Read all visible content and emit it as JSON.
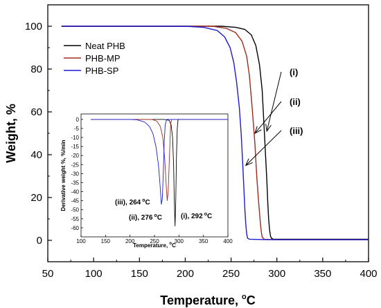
{
  "chart_data": [
    {
      "type": "line",
      "xlabel": "Temperature, ",
      "xlabel_unit": "C",
      "xlabel_sup": "o",
      "ylabel": "Weight, %",
      "xlim": [
        50,
        400
      ],
      "ylim": [
        -10,
        110
      ],
      "xticks": [
        50,
        100,
        150,
        200,
        250,
        300,
        350,
        400
      ],
      "yticks": [
        0,
        20,
        40,
        60,
        80,
        100
      ],
      "legend_position": "top-left",
      "series": [
        {
          "name": "Neat PHB",
          "color": "#000000",
          "points": [
            [
              65,
              100
            ],
            [
              200,
              100
            ],
            [
              240,
              100
            ],
            [
              255,
              99.5
            ],
            [
              265,
              98.5
            ],
            [
              272,
              96
            ],
            [
              277,
              91
            ],
            [
              281,
              82
            ],
            [
              284,
              70
            ],
            [
              287,
              45
            ],
            [
              289,
              28
            ],
            [
              290,
              18
            ],
            [
              291,
              10
            ],
            [
              292,
              5
            ],
            [
              293,
              2
            ],
            [
              294,
              1
            ],
            [
              296,
              0.5
            ],
            [
              320,
              0.5
            ],
            [
              400,
              0.5
            ]
          ]
        },
        {
          "name": "PHB-MP",
          "color": "#a0281e",
          "points": [
            [
              65,
              100
            ],
            [
              200,
              100
            ],
            [
              230,
              100
            ],
            [
              245,
              99
            ],
            [
              255,
              97
            ],
            [
              262,
              93
            ],
            [
              267,
              86
            ],
            [
              270,
              77
            ],
            [
              273,
              62
            ],
            [
              276,
              45
            ],
            [
              278,
              30
            ],
            [
              280,
              18
            ],
            [
              282,
              8
            ],
            [
              283,
              4
            ],
            [
              284,
              1.5
            ],
            [
              286,
              0.5
            ],
            [
              300,
              0.3
            ],
            [
              400,
              0.3
            ]
          ]
        },
        {
          "name": "PHB-SP",
          "color": "#1a1ad6",
          "points": [
            [
              65,
              100
            ],
            [
              200,
              100
            ],
            [
              220,
              99.5
            ],
            [
              235,
              98
            ],
            [
              243,
              95
            ],
            [
              249,
              90
            ],
            [
              253,
              83
            ],
            [
              256,
              74
            ],
            [
              259,
              62
            ],
            [
              261,
              50
            ],
            [
              262,
              42
            ],
            [
              263,
              33
            ],
            [
              264,
              24
            ],
            [
              265,
              15
            ],
            [
              266,
              8
            ],
            [
              267,
              3
            ],
            [
              268,
              1
            ],
            [
              270,
              0.5
            ],
            [
              290,
              0.3
            ],
            [
              400,
              0.3
            ]
          ]
        }
      ],
      "annotations": [
        {
          "label": "(i)",
          "series": "Neat PHB",
          "x": 286,
          "y": 50
        },
        {
          "label": "(ii)",
          "series": "PHB-MP",
          "x": 273,
          "y": 49
        },
        {
          "label": "(iii)",
          "series": "PHB-SP",
          "x": 263,
          "y": 34
        }
      ]
    },
    {
      "type": "line",
      "inset": true,
      "xlabel": "Temperature, ",
      "xlabel_unit": "C",
      "xlabel_sup": "o",
      "ylabel": "Derivative weight %, %/min",
      "xlim": [
        100,
        400
      ],
      "ylim": [
        -65,
        3
      ],
      "xticks": [
        100,
        150,
        200,
        250,
        300,
        350,
        400
      ],
      "yticks": [
        0,
        -5,
        -10,
        -15,
        -20,
        -25,
        -30,
        -35,
        -40,
        -45,
        -50,
        -55,
        -60
      ],
      "series": [
        {
          "name": "Neat PHB",
          "color": "#000000",
          "points": [
            [
              120,
              0
            ],
            [
              200,
              0
            ],
            [
              270,
              0
            ],
            [
              280,
              -0.5
            ],
            [
              284,
              -3
            ],
            [
              287,
              -10
            ],
            [
              289,
              -25
            ],
            [
              290.5,
              -45
            ],
            [
              292,
              -59
            ],
            [
              293.5,
              -45
            ],
            [
              295,
              -20
            ],
            [
              296.5,
              -5
            ],
            [
              298,
              -0.5
            ],
            [
              300,
              0
            ],
            [
              400,
              0
            ]
          ]
        },
        {
          "name": "PHB-MP",
          "color": "#a0281e",
          "points": [
            [
              120,
              0
            ],
            [
              200,
              0
            ],
            [
              245,
              0
            ],
            [
              255,
              -1
            ],
            [
              262,
              -4
            ],
            [
              267,
              -10
            ],
            [
              271,
              -22
            ],
            [
              274,
              -37
            ],
            [
              276,
              -45
            ],
            [
              278,
              -40
            ],
            [
              280,
              -25
            ],
            [
              282,
              -10
            ],
            [
              283,
              -3
            ],
            [
              285,
              0
            ],
            [
              400,
              0
            ]
          ]
        },
        {
          "name": "PHB-SP",
          "color": "#1a1ad6",
          "points": [
            [
              120,
              0
            ],
            [
              200,
              0
            ],
            [
              215,
              -0.3
            ],
            [
              230,
              -1.5
            ],
            [
              240,
              -4
            ],
            [
              247,
              -8
            ],
            [
              253,
              -15
            ],
            [
              258,
              -25
            ],
            [
              261,
              -35
            ],
            [
              264,
              -47
            ],
            [
              266,
              -44
            ],
            [
              268,
              -30
            ],
            [
              270,
              -12
            ],
            [
              272,
              -3
            ],
            [
              275,
              0
            ],
            [
              400,
              0
            ]
          ]
        }
      ],
      "peak_labels": [
        {
          "prefix": "(iii), ",
          "value": "264",
          "unit": "C"
        },
        {
          "prefix": "(ii), ",
          "value": "276",
          "unit": "C"
        },
        {
          "prefix": "(i), ",
          "value": "292",
          "unit": "C"
        }
      ]
    }
  ]
}
